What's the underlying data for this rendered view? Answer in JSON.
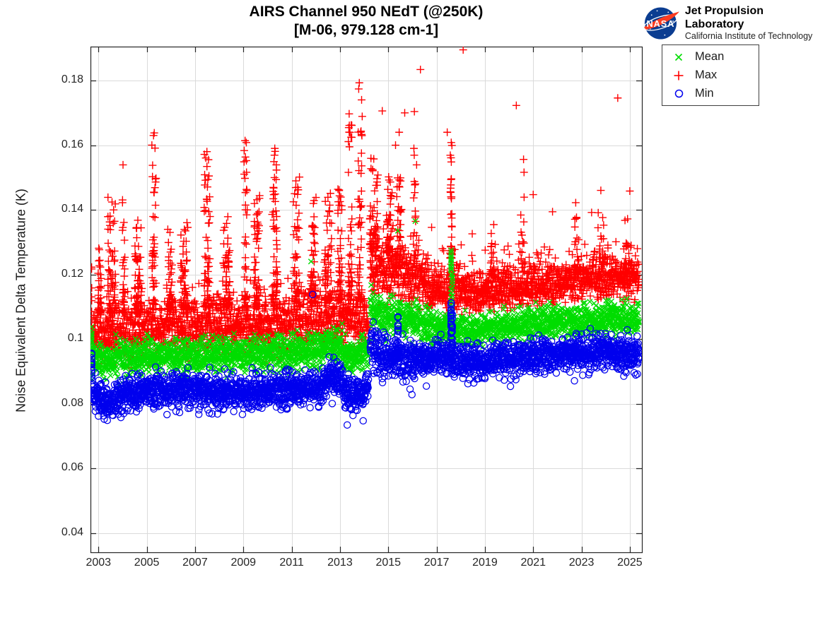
{
  "header": {
    "title_line1": "AIRS Channel 950 NEdT (@250K)",
    "title_line2": "[M-06, 979.128 cm-1]"
  },
  "branding": {
    "logo": "nasa-meatball-icon",
    "logo_colors": {
      "sphere": "#0b3d91",
      "swoosh": "#fc3d21",
      "text": "#ffffff"
    },
    "org_name": "Jet Propulsion Laboratory",
    "org_sub": "California Institute of Technology"
  },
  "legend": {
    "items": [
      {
        "label": "Mean",
        "marker": "x",
        "color": "#00dd00"
      },
      {
        "label": "Max",
        "marker": "+",
        "color": "#ff0000"
      },
      {
        "label": "Min",
        "marker": "o",
        "color": "#0000ee"
      }
    ]
  },
  "chart_data": {
    "type": "scatter",
    "title": "AIRS Channel 950 NEdT (@250K)",
    "subtitle": "[M-06, 979.128 cm-1]",
    "xlabel": "",
    "ylabel": "Noise Equivalent Delta Temperature (K)",
    "xlim": [
      2002.67,
      2025.5
    ],
    "ylim": [
      0.034,
      0.1905
    ],
    "xticks": [
      2003,
      2005,
      2007,
      2009,
      2011,
      2013,
      2015,
      2017,
      2019,
      2021,
      2023,
      2025
    ],
    "xtick_labels": [
      "2003",
      "2005",
      "2007",
      "2009",
      "2011",
      "2013",
      "2015",
      "2017",
      "2019",
      "2021",
      "2023",
      "2025"
    ],
    "yticks": [
      0.04,
      0.06,
      0.08,
      0.1,
      0.12,
      0.14,
      0.16,
      0.18
    ],
    "ytick_labels": [
      "0.04",
      "0.06",
      "0.08",
      "0.1",
      "0.12",
      "0.14",
      "0.16",
      "0.18"
    ],
    "grid": true,
    "grid_color": "#dadada",
    "axis_color": "#262626",
    "legend_position": "outside-top-right",
    "points_per_year": 140,
    "series": [
      {
        "name": "Max",
        "marker": "+",
        "color": "#ff0000",
        "tail_up_prob": 0.08,
        "tail_up_mag": 0.013,
        "bands": [
          [
            2002.74,
            2003.3,
            0.101,
            0.1005,
            0.0085
          ],
          [
            2003.3,
            2004.2,
            0.101,
            0.102,
            0.009
          ],
          [
            2004.2,
            2005.5,
            0.1025,
            0.103,
            0.0095
          ],
          [
            2005.5,
            2007.0,
            0.103,
            0.1035,
            0.0095
          ],
          [
            2007.0,
            2008.5,
            0.1035,
            0.104,
            0.0095
          ],
          [
            2008.5,
            2010.0,
            0.104,
            0.1045,
            0.01
          ],
          [
            2010.0,
            2012.0,
            0.1048,
            0.1052,
            0.01
          ],
          [
            2012.0,
            2013.1,
            0.106,
            0.1065,
            0.0105
          ],
          [
            2013.1,
            2014.18,
            0.1052,
            0.106,
            0.01
          ],
          [
            2014.25,
            2014.8,
            0.122,
            0.1215,
            0.0105
          ],
          [
            2014.8,
            2015.6,
            0.1212,
            0.1205,
            0.0095
          ],
          [
            2015.6,
            2016.6,
            0.1195,
            0.1175,
            0.0085
          ],
          [
            2016.6,
            2017.55,
            0.1165,
            0.1155,
            0.0075
          ],
          [
            2017.55,
            2017.7,
            0.116,
            0.116,
            0.0075
          ],
          [
            2017.7,
            2019.0,
            0.115,
            0.1145,
            0.007
          ],
          [
            2019.0,
            2020.2,
            0.1148,
            0.1155,
            0.007
          ],
          [
            2020.2,
            2021.5,
            0.1158,
            0.1168,
            0.007
          ],
          [
            2021.5,
            2023.0,
            0.117,
            0.1182,
            0.007
          ],
          [
            2023.0,
            2024.3,
            0.1185,
            0.1192,
            0.0072
          ],
          [
            2024.3,
            2025.38,
            0.1192,
            0.1188,
            0.0072
          ]
        ],
        "clusters": [
          [
            2003.05,
            0.15,
            0.108,
            0.1335,
            35
          ],
          [
            2003.55,
            0.35,
            0.108,
            0.144,
            70
          ],
          [
            2004.05,
            0.12,
            0.108,
            0.155,
            30
          ],
          [
            2004.65,
            0.3,
            0.108,
            0.138,
            60
          ],
          [
            2005.3,
            0.18,
            0.109,
            0.164,
            45
          ],
          [
            2005.95,
            0.25,
            0.109,
            0.134,
            45
          ],
          [
            2006.55,
            0.3,
            0.109,
            0.138,
            55
          ],
          [
            2007.5,
            0.25,
            0.11,
            0.1585,
            60
          ],
          [
            2008.3,
            0.28,
            0.11,
            0.139,
            55
          ],
          [
            2009.1,
            0.15,
            0.11,
            0.1615,
            40
          ],
          [
            2009.55,
            0.25,
            0.11,
            0.145,
            55
          ],
          [
            2010.3,
            0.22,
            0.11,
            0.159,
            55
          ],
          [
            2011.2,
            0.25,
            0.111,
            0.151,
            55
          ],
          [
            2011.9,
            0.22,
            0.111,
            0.145,
            50
          ],
          [
            2012.5,
            0.3,
            0.112,
            0.147,
            60
          ],
          [
            2013.0,
            0.18,
            0.112,
            0.152,
            45
          ],
          [
            2013.42,
            0.15,
            0.112,
            0.17,
            45
          ],
          [
            2013.82,
            0.18,
            0.112,
            0.179,
            50
          ],
          [
            2014.4,
            0.35,
            0.128,
            0.156,
            55
          ],
          [
            2015.05,
            0.3,
            0.127,
            0.153,
            45
          ],
          [
            2015.45,
            0.2,
            0.126,
            0.15,
            30
          ],
          [
            2016.1,
            0.15,
            0.124,
            0.16,
            20
          ],
          [
            2017.6,
            0.08,
            0.125,
            0.164,
            40
          ],
          [
            2019.3,
            0.15,
            0.12,
            0.138,
            18
          ],
          [
            2020.55,
            0.15,
            0.121,
            0.145,
            15
          ],
          [
            2022.8,
            0.2,
            0.122,
            0.138,
            15
          ],
          [
            2023.8,
            0.25,
            0.123,
            0.14,
            15
          ],
          [
            2024.9,
            0.3,
            0.123,
            0.138,
            15
          ]
        ],
        "streaks": [
          [
            2002.72,
            0.1,
            0.125,
            12
          ]
        ],
        "outliers": [
          [
            2013.8,
            0.1793
          ],
          [
            2016.33,
            0.1834
          ],
          [
            2018.1,
            0.1895
          ],
          [
            2020.3,
            0.1723
          ],
          [
            2024.5,
            0.1746
          ],
          [
            2016.08,
            0.1704
          ],
          [
            2016.06,
            0.159
          ],
          [
            2013.38,
            0.1697
          ],
          [
            2013.92,
            0.1689
          ],
          [
            2005.31,
            0.1638
          ],
          [
            2005.28,
            0.163
          ],
          [
            2009.07,
            0.1614
          ],
          [
            2010.3,
            0.159
          ],
          [
            2007.49,
            0.158
          ],
          [
            2020.6,
            0.1556
          ],
          [
            2020.62,
            0.1516
          ],
          [
            2021.0,
            0.1447
          ],
          [
            2023.8,
            0.146
          ],
          [
            2025.0,
            0.1458
          ],
          [
            2022.76,
            0.1422
          ],
          [
            2021.8,
            0.1394
          ],
          [
            2017.44,
            0.164
          ],
          [
            2014.75,
            0.1706
          ],
          [
            2015.68,
            0.17
          ],
          [
            2015.45,
            0.164
          ],
          [
            2015.3,
            0.16
          ]
        ]
      },
      {
        "name": "Mean",
        "marker": "x",
        "color": "#00dd00",
        "bands": [
          [
            2002.74,
            2003.2,
            0.0938,
            0.093,
            0.0055
          ],
          [
            2003.2,
            2003.7,
            0.0928,
            0.0932,
            0.0055
          ],
          [
            2003.7,
            2005.0,
            0.0938,
            0.0945,
            0.0058
          ],
          [
            2005.0,
            2006.5,
            0.0948,
            0.095,
            0.0058
          ],
          [
            2006.5,
            2008.0,
            0.0948,
            0.0952,
            0.0058
          ],
          [
            2008.0,
            2010.0,
            0.0952,
            0.0955,
            0.0058
          ],
          [
            2010.0,
            2012.15,
            0.0955,
            0.0958,
            0.0058
          ],
          [
            2012.15,
            2012.45,
            0.0962,
            0.0985,
            0.0058
          ],
          [
            2012.45,
            2013.1,
            0.0988,
            0.0982,
            0.0058
          ],
          [
            2013.1,
            2013.6,
            0.0948,
            0.0945,
            0.0056
          ],
          [
            2013.6,
            2014.18,
            0.0948,
            0.0962,
            0.0056
          ],
          [
            2014.25,
            2014.6,
            0.1085,
            0.1082,
            0.0075
          ],
          [
            2014.6,
            2015.6,
            0.1078,
            0.1068,
            0.0062
          ],
          [
            2015.6,
            2016.6,
            0.1062,
            0.1048,
            0.0058
          ],
          [
            2016.6,
            2017.55,
            0.104,
            0.1035,
            0.0052
          ],
          [
            2017.55,
            2017.7,
            0.1038,
            0.1035,
            0.0052
          ],
          [
            2017.7,
            2018.8,
            0.1032,
            0.1028,
            0.0052
          ],
          [
            2018.8,
            2019.8,
            0.103,
            0.1038,
            0.0052
          ],
          [
            2019.8,
            2021.0,
            0.104,
            0.1048,
            0.0052
          ],
          [
            2021.0,
            2022.5,
            0.1048,
            0.1058,
            0.0052
          ],
          [
            2022.5,
            2024.0,
            0.1058,
            0.1065,
            0.0052
          ],
          [
            2024.0,
            2025.38,
            0.1065,
            0.1062,
            0.0054
          ]
        ],
        "clusters": [],
        "streaks": [
          [
            2002.72,
            0.0945,
            0.104,
            12
          ],
          [
            2017.6,
            0.106,
            0.1282,
            22
          ],
          [
            2017.65,
            0.106,
            0.121,
            12
          ]
        ],
        "outliers": [
          [
            2015.4,
            0.1335
          ],
          [
            2016.12,
            0.1365
          ],
          [
            2011.8,
            0.124
          ]
        ]
      },
      {
        "name": "Min",
        "marker": "o",
        "color": "#0000ee",
        "tail_down_prob": 0.025,
        "tail_down_mag": 0.006,
        "bands": [
          [
            2002.74,
            2003.0,
            0.0832,
            0.0822,
            0.006
          ],
          [
            2003.0,
            2003.35,
            0.082,
            0.0805,
            0.006
          ],
          [
            2003.35,
            2003.7,
            0.08,
            0.0802,
            0.0055
          ],
          [
            2003.7,
            2004.1,
            0.081,
            0.0828,
            0.0055
          ],
          [
            2004.1,
            2005.2,
            0.0832,
            0.084,
            0.006
          ],
          [
            2005.2,
            2006.5,
            0.0842,
            0.0845,
            0.006
          ],
          [
            2006.5,
            2007.6,
            0.0842,
            0.0838,
            0.0058
          ],
          [
            2007.6,
            2009.0,
            0.0835,
            0.0837,
            0.0058
          ],
          [
            2009.0,
            2010.5,
            0.0836,
            0.084,
            0.0058
          ],
          [
            2010.5,
            2012.15,
            0.0842,
            0.0845,
            0.0058
          ],
          [
            2012.15,
            2012.45,
            0.085,
            0.088,
            0.0058
          ],
          [
            2012.45,
            2013.1,
            0.0885,
            0.088,
            0.0058
          ],
          [
            2013.1,
            2013.15,
            0.086,
            0.0838,
            0.005
          ],
          [
            2013.15,
            2013.55,
            0.0832,
            0.0826,
            0.0056
          ],
          [
            2013.55,
            2014.0,
            0.0826,
            0.0836,
            0.0056
          ],
          [
            2014.0,
            2014.18,
            0.0845,
            0.0862,
            0.0056
          ],
          [
            2014.25,
            2014.55,
            0.0965,
            0.0958,
            0.0085
          ],
          [
            2014.55,
            2015.1,
            0.0952,
            0.0945,
            0.007
          ],
          [
            2015.1,
            2015.6,
            0.0945,
            0.0942,
            0.0065
          ],
          [
            2015.6,
            2016.6,
            0.0942,
            0.094,
            0.006
          ],
          [
            2016.6,
            2017.55,
            0.0942,
            0.0945,
            0.0058
          ],
          [
            2017.55,
            2017.7,
            0.094,
            0.0935,
            0.0058
          ],
          [
            2017.7,
            2018.6,
            0.0932,
            0.0925,
            0.0058
          ],
          [
            2018.6,
            2019.6,
            0.0925,
            0.0932,
            0.0058
          ],
          [
            2019.6,
            2020.6,
            0.0935,
            0.0945,
            0.0058
          ],
          [
            2020.6,
            2021.8,
            0.0945,
            0.0952,
            0.0058
          ],
          [
            2021.8,
            2023.2,
            0.0952,
            0.096,
            0.0058
          ],
          [
            2023.2,
            2024.4,
            0.096,
            0.0958,
            0.006
          ],
          [
            2024.4,
            2025.38,
            0.0956,
            0.095,
            0.006
          ]
        ],
        "clusters": [],
        "streaks": [
          [
            2002.72,
            0.085,
            0.0962,
            14
          ],
          [
            2015.4,
            0.0975,
            0.1105,
            12
          ],
          [
            2017.6,
            0.095,
            0.1118,
            26
          ],
          [
            2017.65,
            0.095,
            0.108,
            15
          ]
        ],
        "outliers": [
          [
            2011.87,
            0.1138
          ],
          [
            2013.3,
            0.0734
          ],
          [
            2013.96,
            0.0747
          ],
          [
            2015.9,
            0.0845
          ],
          [
            2015.98,
            0.0828
          ],
          [
            2023.05,
            0.0888
          ],
          [
            2023.3,
            0.089
          ],
          [
            2021.1,
            0.0893
          ],
          [
            2024.75,
            0.0885
          ],
          [
            2019.8,
            0.0873
          ]
        ]
      }
    ]
  }
}
